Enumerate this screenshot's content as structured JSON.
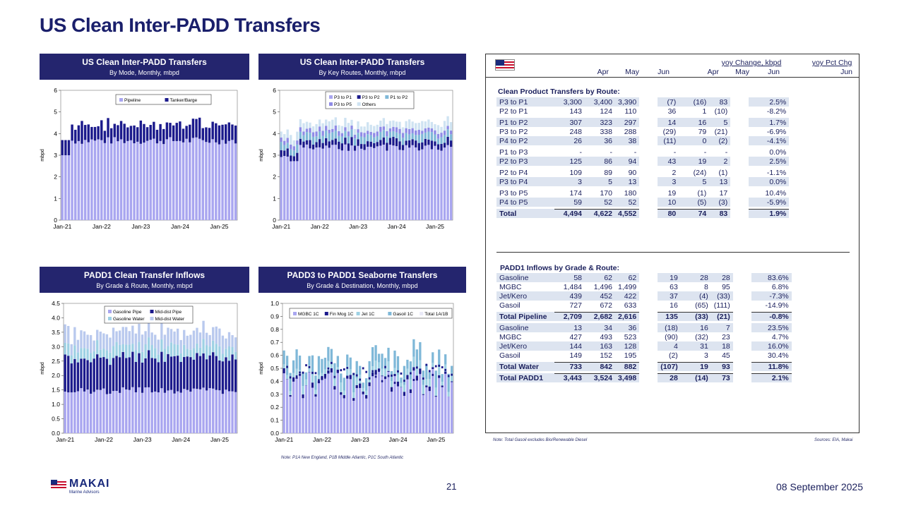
{
  "page_title": "US Clean Inter-PADD Transfers",
  "charts": [
    {
      "title": "US Clean Inter-PADD Transfers",
      "subtitle": "By Mode, Monthly, mbpd",
      "ylabel": "mbpd",
      "yticks": [
        "0",
        "1",
        "2",
        "3",
        "4",
        "5",
        "6"
      ],
      "xticks": [
        "Jan-21",
        "Jan-22",
        "Jan-23",
        "Jan-24",
        "Jan-25"
      ],
      "legend": [
        "Pipeline",
        "Tanker/Barge"
      ]
    },
    {
      "title": "US Clean Inter-PADD Transfers",
      "subtitle": "By Key Routes, Monthly, mbpd",
      "ylabel": "mbpd",
      "yticks": [
        "0",
        "1",
        "2",
        "3",
        "4",
        "5",
        "6"
      ],
      "xticks": [
        "Jan-21",
        "Jan-22",
        "Jan-23",
        "Jan-24",
        "Jan-25"
      ],
      "legend": [
        "P3 to P1",
        "P3 to P2",
        "P1 to P2",
        "P3 to P5",
        "Others"
      ]
    },
    {
      "title": "PADD1 Clean Transfer Inflows",
      "subtitle": "By Grade & Route, Monthly, mbpd",
      "ylabel": "mbpd",
      "yticks": [
        "0.0",
        "0.5",
        "1.0",
        "1.5",
        "2.0",
        "2.5",
        "3.0",
        "3.5",
        "4.0",
        "4.5"
      ],
      "xticks": [
        "Jan-21",
        "Jan-22",
        "Jan-23",
        "Jan-24",
        "Jan-25"
      ],
      "legend": [
        "Gasoline Pipe",
        "Mid-dist Pipe",
        "Gasoline Water",
        "Mid-dist Water"
      ]
    },
    {
      "title": "PADD3 to PADD1 Seaborne Transfers",
      "subtitle": "By Grade & Destination, Monthly, mbpd",
      "ylabel": "mbpd",
      "yticks": [
        "0.0",
        "0.1",
        "0.2",
        "0.3",
        "0.4",
        "0.5",
        "0.6",
        "0.7",
        "0.8",
        "0.9",
        "1.0"
      ],
      "xticks": [
        "Jan-21",
        "Jan-22",
        "Jan-23",
        "Jan-24",
        "Jan-25"
      ],
      "legend": [
        "MGBC 1C",
        "Fin Mog 1C",
        "Jet 1C",
        "Gasoil 1C",
        "Total 1A/1B"
      ]
    }
  ],
  "chart_data": [
    {
      "type": "bar",
      "title": "US Clean Inter-PADD Transfers",
      "x_range": [
        "Jan-21",
        "Jun-25"
      ],
      "ylim": [
        0,
        6
      ],
      "series": [
        {
          "name": "Pipeline",
          "values_approx": "3.0-3.8 monthly, latest Apr 4.494, May 4.622, Jun 4.552 total"
        },
        {
          "name": "Tanker/Barge",
          "values_approx": "0.3-0.9 monthly"
        }
      ]
    },
    {
      "type": "bar",
      "title": "US Clean Inter-PADD Transfers",
      "ylim": [
        0,
        6
      ],
      "series": [
        {
          "name": "P3 to P1"
        },
        {
          "name": "P3 to P2"
        },
        {
          "name": "P1 to P2"
        },
        {
          "name": "P3 to P5"
        },
        {
          "name": "Others"
        }
      ]
    },
    {
      "type": "bar",
      "title": "PADD1 Clean Transfer Inflows",
      "ylim": [
        0,
        4.5
      ],
      "series": [
        {
          "name": "Gasoline Pipe"
        },
        {
          "name": "Mid-dist Pipe"
        },
        {
          "name": "Gasoline Water"
        },
        {
          "name": "Mid-dist Water"
        }
      ]
    },
    {
      "type": "bar",
      "title": "PADD3 to PADD1 Seaborne Transfers",
      "ylim": [
        0,
        1.0
      ],
      "series": [
        {
          "name": "MGBC 1C"
        },
        {
          "name": "Fin Mog 1C"
        },
        {
          "name": "Jet 1C"
        },
        {
          "name": "Gasoil 1C"
        },
        {
          "name": "Total 1A/1B"
        }
      ]
    }
  ],
  "table": {
    "group_headers": {
      "yoy": "yoy Change, kbpd",
      "pct": "yoy Pct Chg"
    },
    "columns": [
      "Apr",
      "May",
      "Jun",
      "Apr",
      "May",
      "Jun",
      "Jun"
    ],
    "section1_title": "Clean Product Transfers by Route:",
    "section1_rows": [
      {
        "label": "P3 to P1",
        "v": [
          "3,300",
          "3,400",
          "3,390",
          "(7)",
          "(16)",
          "83",
          "2.5%"
        ],
        "shade": true
      },
      {
        "label": "P2 to P1",
        "v": [
          "143",
          "124",
          "110",
          "36",
          "1",
          "(10)",
          "-8.2%"
        ],
        "shade": false,
        "gap": true
      },
      {
        "label": "P1 to P2",
        "v": [
          "307",
          "323",
          "297",
          "14",
          "16",
          "5",
          "1.7%"
        ],
        "shade": true
      },
      {
        "label": "P3 to P2",
        "v": [
          "248",
          "338",
          "288",
          "(29)",
          "79",
          "(21)",
          "-6.9%"
        ],
        "shade": false
      },
      {
        "label": "P4 to P2",
        "v": [
          "26",
          "36",
          "38",
          "(11)",
          "0",
          "(2)",
          "-4.1%"
        ],
        "shade": true,
        "gap": true
      },
      {
        "label": "P1 to P3",
        "v": [
          "-",
          "-",
          "-",
          "-",
          "-",
          "-",
          "0.0%"
        ],
        "shade": false
      },
      {
        "label": "P2 to P3",
        "v": [
          "125",
          "86",
          "94",
          "43",
          "19",
          "2",
          "2.5%"
        ],
        "shade": true,
        "gap": true
      },
      {
        "label": "P2 to P4",
        "v": [
          "109",
          "89",
          "90",
          "2",
          "(24)",
          "(1)",
          "-1.1%"
        ],
        "shade": false
      },
      {
        "label": "P3 to P4",
        "v": [
          "3",
          "5",
          "13",
          "3",
          "5",
          "13",
          "0.0%"
        ],
        "shade": true,
        "gap": true
      },
      {
        "label": "P3 to P5",
        "v": [
          "174",
          "170",
          "180",
          "19",
          "(1)",
          "17",
          "10.4%"
        ],
        "shade": false
      },
      {
        "label": "P4 to P5",
        "v": [
          "59",
          "52",
          "52",
          "10",
          "(5)",
          "(3)",
          "-5.9%"
        ],
        "shade": true,
        "gap": true
      },
      {
        "label": "Total",
        "v": [
          "4,494",
          "4,622",
          "4,552",
          "80",
          "74",
          "83",
          "1.9%"
        ],
        "shade": true,
        "bold": true
      }
    ],
    "section2_title": "PADD1 Inflows by Grade & Route:",
    "section2_rows": [
      {
        "label": "Gasoline",
        "v": [
          "58",
          "62",
          "62",
          "19",
          "28",
          "28",
          "83.6%"
        ],
        "shade": true
      },
      {
        "label": "MGBC",
        "v": [
          "1,484",
          "1,496",
          "1,499",
          "63",
          "8",
          "95",
          "6.8%"
        ],
        "shade": false
      },
      {
        "label": "Jet/Kero",
        "v": [
          "439",
          "452",
          "422",
          "37",
          "(4)",
          "(33)",
          "-7.3%"
        ],
        "shade": true
      },
      {
        "label": "Gasoil",
        "v": [
          "727",
          "672",
          "633",
          "16",
          "(65)",
          "(111)",
          "-14.9%"
        ],
        "shade": false,
        "gap": true
      },
      {
        "label": "Total Pipeline",
        "v": [
          "2,709",
          "2,682",
          "2,616",
          "135",
          "(33)",
          "(21)",
          "-0.8%"
        ],
        "shade": true,
        "bold": true,
        "gap": true
      },
      {
        "label": "Gasoline",
        "v": [
          "13",
          "34",
          "36",
          "(18)",
          "16",
          "7",
          "23.5%"
        ],
        "shade": true
      },
      {
        "label": "MGBC",
        "v": [
          "427",
          "493",
          "523",
          "(90)",
          "(32)",
          "23",
          "4.7%"
        ],
        "shade": false
      },
      {
        "label": "Jet/Kero",
        "v": [
          "144",
          "163",
          "128",
          "4",
          "31",
          "18",
          "16.0%"
        ],
        "shade": true
      },
      {
        "label": "Gasoil",
        "v": [
          "149",
          "152",
          "195",
          "(2)",
          "3",
          "45",
          "30.4%"
        ],
        "shade": false,
        "gap": true
      },
      {
        "label": "Total Water",
        "v": [
          "733",
          "842",
          "882",
          "(107)",
          "19",
          "93",
          "11.8%"
        ],
        "shade": true,
        "bold": true,
        "gap": true
      },
      {
        "label": "Total PADD1",
        "v": [
          "3,443",
          "3,524",
          "3,498",
          "28",
          "(14)",
          "73",
          "2.1%"
        ],
        "shade": true,
        "bold": true
      }
    ]
  },
  "notes": {
    "table_left": "Note: Total Gasoil excludes Bio/Renewable Diesel",
    "table_right": "Sources: EIA, Makai",
    "chart4": "Note: P1A New England, P1B Middle Atlantic, P1C South Atlantic"
  },
  "footer": {
    "logo_text": "MAKAI",
    "logo_sub": "Marine Advisors",
    "page": "21",
    "date": "08 September 2025"
  },
  "colors": {
    "navy": "#24256e",
    "pipe": "#a9a6f0",
    "dark": "#1b1a8c",
    "light_blue": "#9ed1e4",
    "shade": "#dde4f0"
  }
}
